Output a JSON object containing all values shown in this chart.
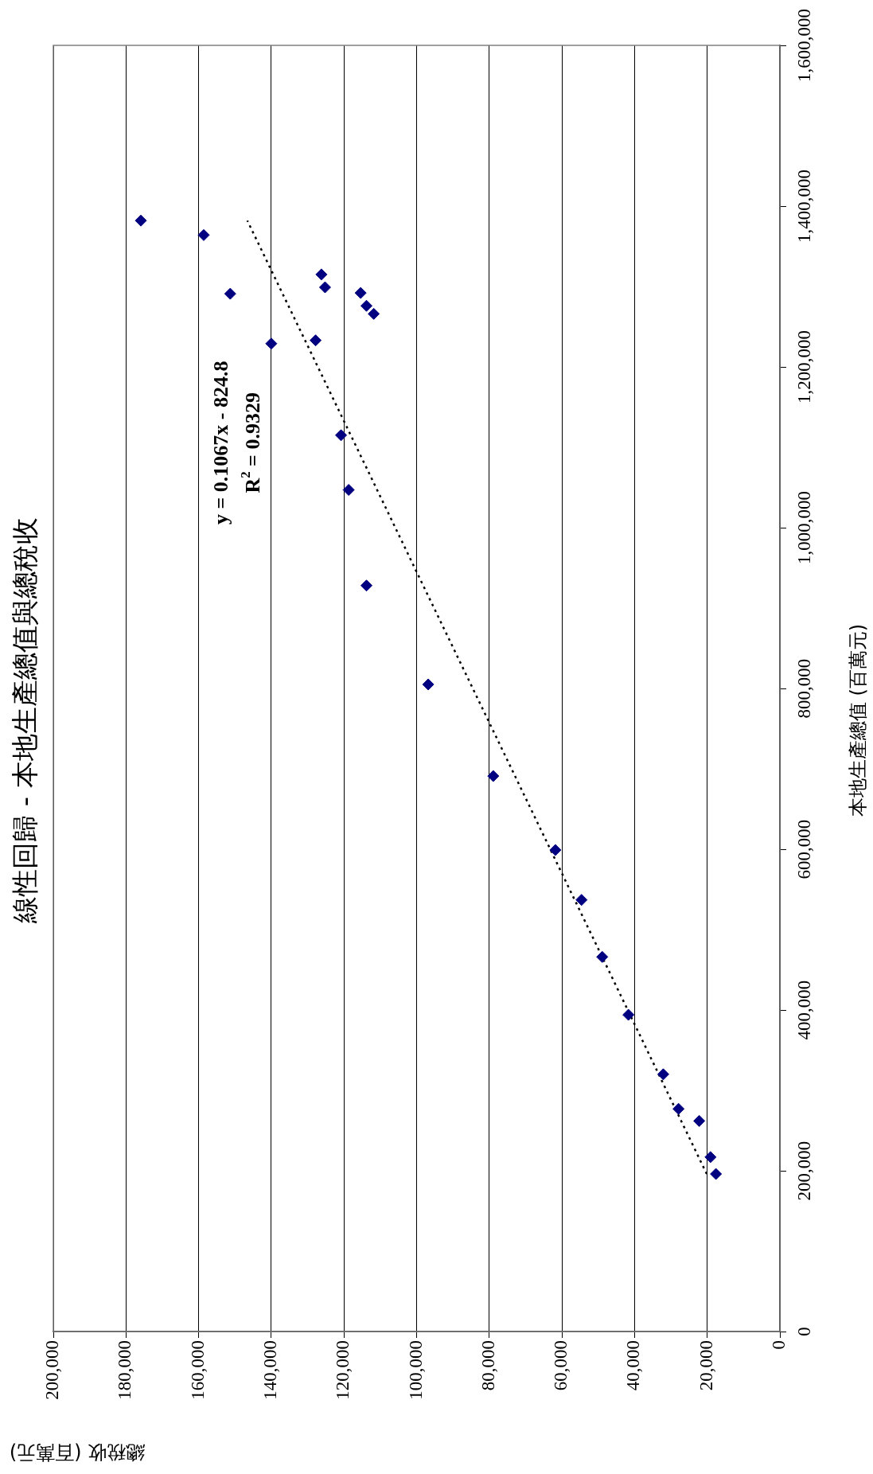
{
  "chart_data": {
    "type": "scatter",
    "title": "線性回歸 - 本地生產總值與總稅收",
    "xlabel": "總稅收 (百萬元)",
    "ylabel": "本地生產總值 (百萬元)",
    "xlim": [
      200000,
      0
    ],
    "ylim": [
      0,
      1600000
    ],
    "xticks": [
      {
        "value": 200000,
        "label": "200,000"
      },
      {
        "value": 180000,
        "label": "180,000"
      },
      {
        "value": 160000,
        "label": "160,000"
      },
      {
        "value": 140000,
        "label": "140,000"
      },
      {
        "value": 120000,
        "label": "120,000"
      },
      {
        "value": 100000,
        "label": "100,000"
      },
      {
        "value": 80000,
        "label": "80,000"
      },
      {
        "value": 60000,
        "label": "60,000"
      },
      {
        "value": 40000,
        "label": "40,000"
      },
      {
        "value": 20000,
        "label": "20,000"
      },
      {
        "value": 0,
        "label": "0"
      }
    ],
    "yticks": [
      {
        "value": 0,
        "label": "0"
      },
      {
        "value": 200000,
        "label": "200,000"
      },
      {
        "value": 400000,
        "label": "400,000"
      },
      {
        "value": 600000,
        "label": "600,000"
      },
      {
        "value": 800000,
        "label": "800,000"
      },
      {
        "value": 1000000,
        "label": "1,000,000"
      },
      {
        "value": 1200000,
        "label": "1,200,000"
      },
      {
        "value": 1400000,
        "label": "1,400,000"
      },
      {
        "value": 1600000,
        "label": "1,600,000"
      }
    ],
    "grid": "x",
    "legend": false,
    "series": [
      {
        "marker": "diamond",
        "color": "#000080",
        "x": [
          175900,
          158600,
          151300,
          126200,
          125200,
          115400,
          113800,
          111800,
          140000,
          127800,
          120800,
          118700,
          113800,
          96800,
          78900,
          61800,
          54600,
          48900,
          41700,
          32100,
          27900,
          22200,
          19100,
          17600
        ],
        "values": [
          1382000,
          1364000,
          1291000,
          1315000,
          1299000,
          1292000,
          1276000,
          1266000,
          1229000,
          1233000,
          1115000,
          1047000,
          928000,
          805000,
          691000,
          599000,
          537000,
          466000,
          394000,
          320000,
          277000,
          262000,
          217000,
          196000
        ]
      },
      {
        "type": "line",
        "marker": "none",
        "line_style": "dotted",
        "color": "#000000",
        "x": [
          20130,
          146590
        ],
        "values": [
          196000,
          1382000
        ]
      }
    ],
    "annotations": [
      "y = 0.1067x - 824.8",
      "R$^{2}$ = 0.9329"
    ]
  }
}
